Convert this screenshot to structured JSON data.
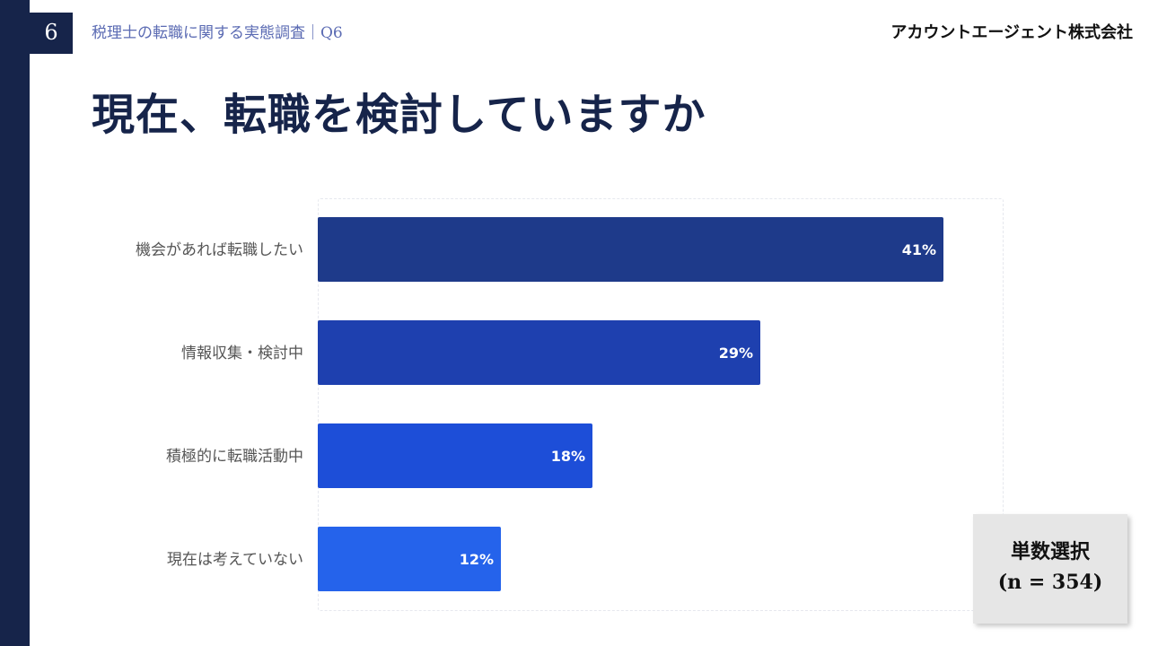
{
  "header": {
    "page_number": "6",
    "breadcrumb": "税理士の転職に関する実態調査｜Q6",
    "company": "アカウントエージェント株式会社"
  },
  "title": "現在、転職を検討していますか",
  "note": {
    "line1": "単数選択",
    "line2": "(n = 354)"
  },
  "chart_data": {
    "type": "bar",
    "orientation": "horizontal",
    "categories": [
      "機会があれば転職したい",
      "情報収集・検討中",
      "積極的に転職活動中",
      "現在は考えていない"
    ],
    "values": [
      41,
      29,
      18,
      12
    ],
    "value_labels": [
      "41%",
      "29%",
      "18%",
      "12%"
    ],
    "unit": "%",
    "colors": [
      "#1e3a8a",
      "#1e40af",
      "#1d4ed8",
      "#2563eb"
    ],
    "grid": false,
    "legend": "none"
  }
}
